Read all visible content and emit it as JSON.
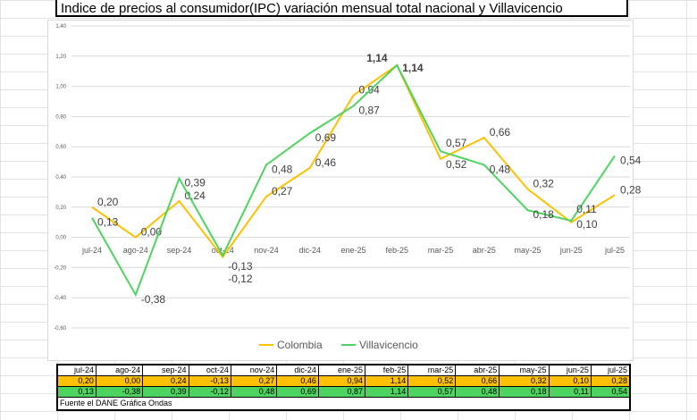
{
  "title": "Indice de precios al consumidor(IPC) variación mensual total nacional y Villavicencio",
  "source": "Fuente el DANE Gráfica Ondas",
  "chart_data": {
    "type": "line",
    "title": "Indice de precios al consumidor(IPC) variación mensual total nacional y Villavicencio",
    "categories": [
      "jul-24",
      "ago-24",
      "sep-24",
      "oct-24",
      "nov-24",
      "dic-24",
      "ene-25",
      "feb-25",
      "mar-25",
      "abr-25",
      "may-25",
      "jun-25",
      "jul-25"
    ],
    "series": [
      {
        "name": "Colombia",
        "color": "#ffc000",
        "values": [
          0.2,
          0.0,
          0.24,
          -0.13,
          0.27,
          0.46,
          0.94,
          1.14,
          0.52,
          0.66,
          0.32,
          0.1,
          0.28
        ],
        "labels": [
          "0,20",
          "0,00",
          "0,24",
          "-0,13",
          "0,27",
          "0,46",
          "0,94",
          "1,14",
          "0,52",
          "0,66",
          "0,32",
          "0,10",
          "0,28"
        ]
      },
      {
        "name": "Villavicencio",
        "color": "#4dd35f",
        "values": [
          0.13,
          -0.38,
          0.39,
          -0.12,
          0.48,
          0.69,
          0.87,
          1.14,
          0.57,
          0.48,
          0.18,
          0.11,
          0.54
        ],
        "labels": [
          "0,13",
          "-0,38",
          "0,39",
          "-0,12",
          "0,48",
          "0,69",
          "0,87",
          "1,14",
          "0,57",
          "0,48",
          "0,18",
          "0,11",
          "0,54"
        ]
      }
    ],
    "yticks": [
      "1,40",
      "1,20",
      "1,00",
      "0,80",
      "0,60",
      "0,40",
      "0,20",
      "0,00",
      "-0,20",
      "-0,40",
      "-0,60"
    ],
    "ylim": [
      -0.6,
      1.4
    ],
    "grid": true,
    "legend": "bottom"
  }
}
